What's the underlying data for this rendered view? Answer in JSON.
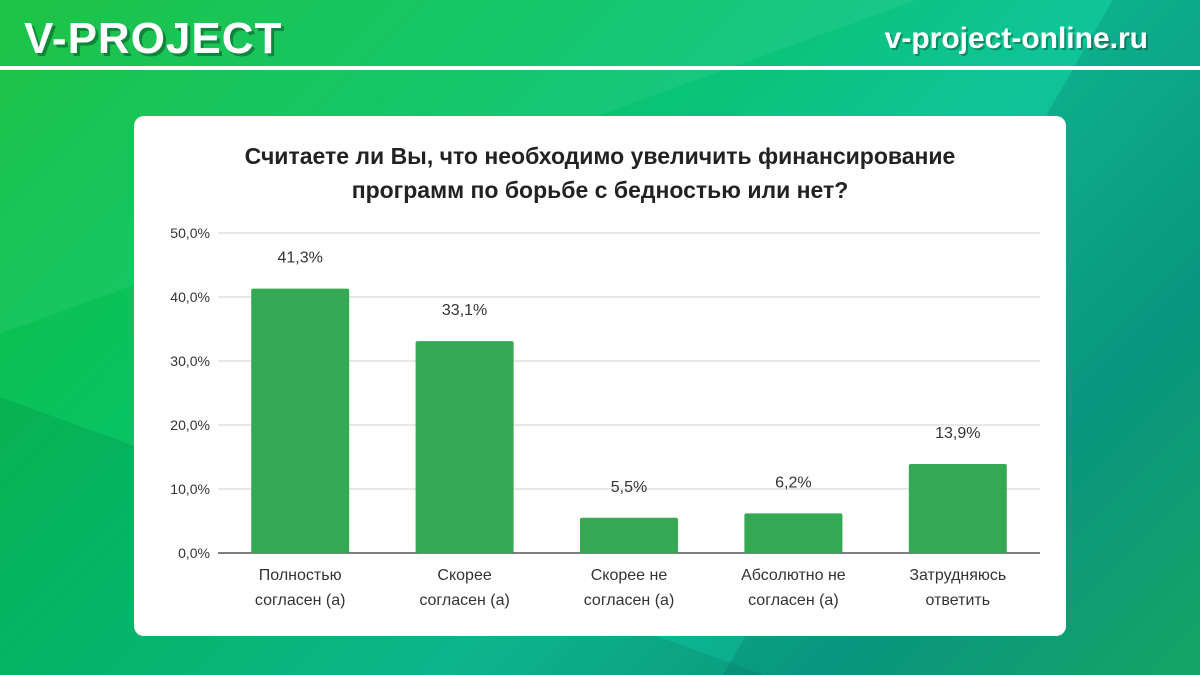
{
  "header": {
    "brand": "V-PROJECT",
    "site": "v-project-online.ru"
  },
  "chart_data": {
    "type": "bar",
    "title": [
      "Считаете ли Вы, что необходимо увеличить финансирование",
      "программ по борьбе с бедностью или нет?"
    ],
    "categories": [
      [
        "Полностью",
        "согласен (а)"
      ],
      [
        "Скорее",
        "согласен (а)"
      ],
      [
        "Скорее не",
        "согласен (а)"
      ],
      [
        "Абсолютно не",
        "согласен (а)"
      ],
      [
        "Затрудняюсь",
        "ответить"
      ]
    ],
    "values": [
      41.3,
      33.1,
      5.5,
      6.2,
      13.9
    ],
    "data_labels": [
      "41,3%",
      "33,1%",
      "5,5%",
      "6,2%",
      "13,9%"
    ],
    "yticks": [
      0,
      10,
      20,
      30,
      40,
      50
    ],
    "ytick_labels": [
      "0,0%",
      "10,0%",
      "20,0%",
      "30,0%",
      "40,0%",
      "50,0%"
    ],
    "ylim": [
      0,
      50
    ],
    "grid": true,
    "xlabel": "",
    "ylabel": "",
    "bar_color": "#34a853"
  }
}
